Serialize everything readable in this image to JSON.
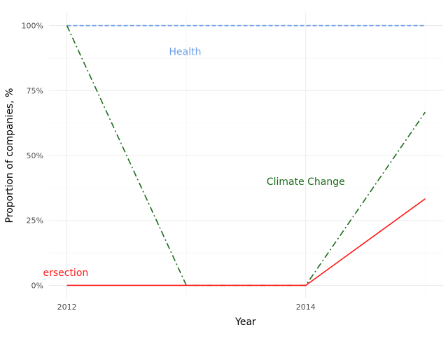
{
  "chart_data": {
    "type": "line",
    "title": "",
    "xlabel": "Year",
    "ylabel": "Proportion of companies, %",
    "x": [
      2012,
      2013,
      2014,
      2015
    ],
    "x_ticks": [
      2012,
      2014
    ],
    "x_tick_labels": [
      "2012",
      "2014"
    ],
    "xlim": [
      2011.85,
      2015.15
    ],
    "ylim": [
      -0.05,
      1.05
    ],
    "y_ticks": [
      0,
      0.25,
      0.5,
      0.75,
      1.0
    ],
    "y_tick_labels": [
      "0%",
      "25%",
      "50%",
      "75%",
      "100%"
    ],
    "grid": true,
    "legend": "none",
    "series": [
      {
        "name": "Health",
        "values": [
          1.0,
          1.0,
          1.0,
          1.0
        ],
        "color": "#6a9ee8",
        "dash": "dashed",
        "label": {
          "text": "Health",
          "x": 2012.99,
          "y": 0.9
        }
      },
      {
        "name": "Climate Change",
        "values": [
          1.0,
          0.0,
          0.0,
          0.6667
        ],
        "color": "#1a6b1a",
        "dash": "dashdot",
        "label": {
          "text": "Climate Change",
          "x": 2014.0,
          "y": 0.4
        }
      },
      {
        "name": "Intersection",
        "values": [
          0.0,
          0.0,
          0.0,
          0.3333
        ],
        "color": "#ff1a1a",
        "dash": "solid",
        "label": {
          "text": "ersection",
          "x": 2011.8,
          "y": 0.05
        }
      }
    ]
  }
}
